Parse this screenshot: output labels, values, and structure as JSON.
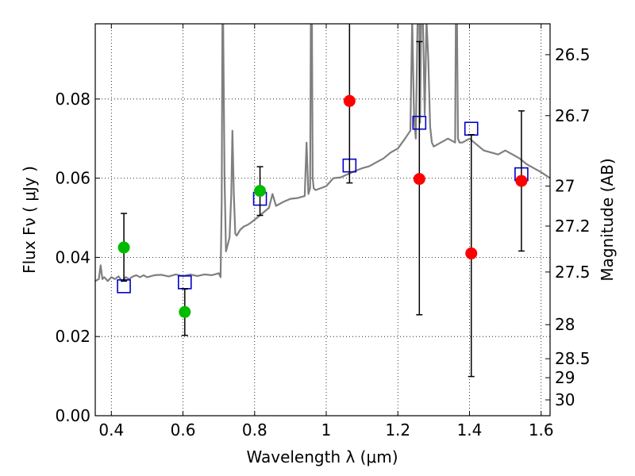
{
  "chart_data": {
    "type": "scatter",
    "xlabel": "Wavelength  λ (μm)",
    "ylabel_left": "Flux  Fν  ( μJy )",
    "ylabel_right": "Magnitude (AB)",
    "xlim": [
      0.355,
      1.625
    ],
    "ylim": [
      0.0,
      0.099
    ],
    "grid": true,
    "x_ticks": [
      {
        "value": 0.4,
        "label": "0.4"
      },
      {
        "value": 0.6,
        "label": "0.6"
      },
      {
        "value": 0.8,
        "label": "0.8"
      },
      {
        "value": 1.0,
        "label": "1"
      },
      {
        "value": 1.2,
        "label": "1.2"
      },
      {
        "value": 1.4,
        "label": "1.4"
      },
      {
        "value": 1.6,
        "label": "1.6"
      }
    ],
    "y_ticks": [
      {
        "value": 0.0,
        "label": "0.00"
      },
      {
        "value": 0.02,
        "label": "0.02"
      },
      {
        "value": 0.04,
        "label": "0.04"
      },
      {
        "value": 0.06,
        "label": "0.06"
      },
      {
        "value": 0.08,
        "label": "0.08"
      }
    ],
    "right_ticks": [
      {
        "flux": 0.0912,
        "label": "26.5"
      },
      {
        "flux": 0.0758,
        "label": "26.7"
      },
      {
        "flux": 0.058,
        "label": "27"
      },
      {
        "flux": 0.0479,
        "label": "27.2"
      },
      {
        "flux": 0.0363,
        "label": "27.5"
      },
      {
        "flux": 0.023,
        "label": "28"
      },
      {
        "flux": 0.0144,
        "label": "28.5"
      },
      {
        "flux": 0.0096,
        "label": "29"
      },
      {
        "flux": 0.004,
        "label": "30"
      }
    ],
    "series": [
      {
        "marker": "line",
        "color": "#7f7f7f",
        "x": [
          0.355,
          0.365,
          0.37,
          0.375,
          0.38,
          0.39,
          0.4,
          0.41,
          0.42,
          0.43,
          0.44,
          0.45,
          0.46,
          0.47,
          0.48,
          0.49,
          0.5,
          0.52,
          0.54,
          0.56,
          0.58,
          0.6,
          0.62,
          0.64,
          0.66,
          0.68,
          0.7,
          0.705,
          0.708,
          0.71,
          0.712,
          0.716,
          0.72,
          0.73,
          0.735,
          0.738,
          0.742,
          0.746,
          0.75,
          0.76,
          0.77,
          0.78,
          0.79,
          0.8,
          0.82,
          0.84,
          0.85,
          0.86,
          0.88,
          0.9,
          0.92,
          0.94,
          0.945,
          0.95,
          0.955,
          0.957,
          0.96,
          0.962,
          0.965,
          0.97,
          1.0,
          1.02,
          1.04,
          1.06,
          1.08,
          1.1,
          1.12,
          1.14,
          1.16,
          1.18,
          1.2,
          1.22,
          1.235,
          1.24,
          1.245,
          1.25,
          1.255,
          1.26,
          1.262,
          1.265,
          1.27,
          1.275,
          1.28,
          1.285,
          1.29,
          1.295,
          1.3,
          1.32,
          1.34,
          1.36,
          1.362,
          1.365,
          1.368,
          1.372,
          1.38,
          1.4,
          1.42,
          1.44,
          1.46,
          1.48,
          1.5,
          1.52,
          1.54,
          1.56,
          1.58,
          1.6,
          1.625
        ],
        "y": [
          0.034,
          0.0345,
          0.038,
          0.0345,
          0.035,
          0.034,
          0.035,
          0.0345,
          0.0352,
          0.034,
          0.035,
          0.0345,
          0.0352,
          0.0355,
          0.035,
          0.0355,
          0.035,
          0.0355,
          0.0356,
          0.0352,
          0.0357,
          0.0353,
          0.0357,
          0.0353,
          0.0357,
          0.0355,
          0.036,
          0.035,
          0.054,
          0.1,
          0.1,
          0.06,
          0.0415,
          0.045,
          0.056,
          0.072,
          0.056,
          0.046,
          0.0455,
          0.047,
          0.0478,
          0.0482,
          0.0488,
          0.0495,
          0.051,
          0.0525,
          0.056,
          0.053,
          0.054,
          0.0548,
          0.055,
          0.0555,
          0.069,
          0.056,
          0.0575,
          0.1,
          0.1,
          0.06,
          0.0575,
          0.057,
          0.058,
          0.06,
          0.0602,
          0.061,
          0.0618,
          0.0625,
          0.063,
          0.064,
          0.065,
          0.0665,
          0.0675,
          0.07,
          0.072,
          0.1,
          0.076,
          0.07,
          0.1,
          0.1,
          0.074,
          0.1,
          0.1,
          0.076,
          0.1,
          0.09,
          0.073,
          0.069,
          0.068,
          0.069,
          0.07,
          0.069,
          0.1,
          0.1,
          0.07,
          0.069,
          0.069,
          0.07,
          0.0685,
          0.067,
          0.0665,
          0.066,
          0.067,
          0.066,
          0.065,
          0.0635,
          0.0625,
          0.0615,
          0.06
        ]
      },
      {
        "marker": "square",
        "color": "#0000cc",
        "x": [
          0.435,
          0.605,
          0.815,
          1.065,
          1.26,
          1.405,
          1.545
        ],
        "y": [
          0.0327,
          0.0337,
          0.0548,
          0.0632,
          0.074,
          0.0725,
          0.061
        ]
      },
      {
        "marker": "circle",
        "color": "#00bb00",
        "x": [
          0.435,
          0.605,
          0.815
        ],
        "y": [
          0.0425,
          0.0262,
          0.0568
        ],
        "err_low": [
          0.0085,
          0.0059,
          0.0062
        ],
        "err_high": [
          0.0086,
          0.0058,
          0.0061
        ]
      },
      {
        "marker": "circle",
        "color": "#ff0000",
        "x": [
          1.065,
          1.26,
          1.405,
          1.545
        ],
        "y": [
          0.0795,
          0.0598,
          0.041,
          0.0593
        ],
        "err_low": [
          0.0207,
          0.0343,
          0.0311,
          0.0177
        ],
        "err_high": [
          0.0305,
          0.0347,
          0.03,
          0.0177
        ]
      }
    ]
  }
}
